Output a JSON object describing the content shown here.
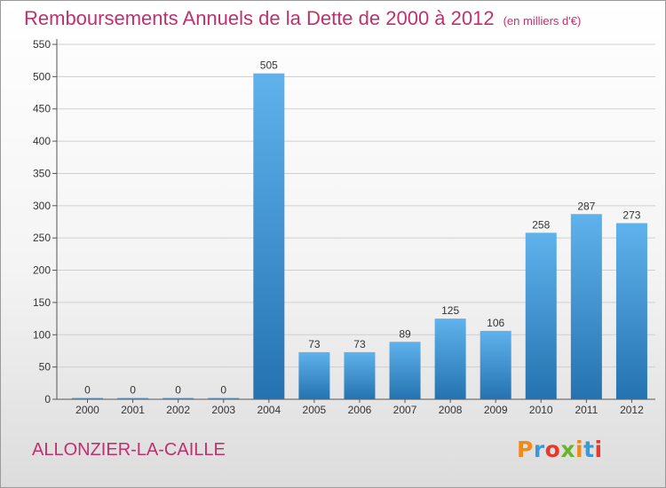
{
  "header": {
    "title": "Remboursements Annuels de la Dette de 2000 à 2012",
    "unit": "(en milliers d'€)"
  },
  "footer": {
    "commune": "ALLONZIER-LA-CAILLE",
    "brand": "Proxiti",
    "brand_colors": [
      "#f08a1c",
      "#3a9ad9",
      "#e8372b",
      "#6ab42d",
      "#f08a1c",
      "#3a9ad9",
      "#e8372b"
    ]
  },
  "colors": {
    "title": "#c0306e",
    "bar_top": "#5fb2ec",
    "bar_bottom": "#2473b0",
    "grid": "#cfcfcf",
    "axis": "#555555"
  },
  "chart_data": {
    "type": "bar",
    "categories": [
      "2000",
      "2001",
      "2002",
      "2003",
      "2004",
      "2005",
      "2006",
      "2007",
      "2008",
      "2009",
      "2010",
      "2011",
      "2012"
    ],
    "values": [
      0,
      0,
      0,
      0,
      505,
      73,
      73,
      89,
      125,
      106,
      258,
      287,
      273
    ],
    "ylim": [
      0,
      550
    ],
    "yticks": [
      0,
      50,
      100,
      150,
      200,
      250,
      300,
      350,
      400,
      450,
      500,
      550
    ],
    "grid": true,
    "legend": "none"
  }
}
